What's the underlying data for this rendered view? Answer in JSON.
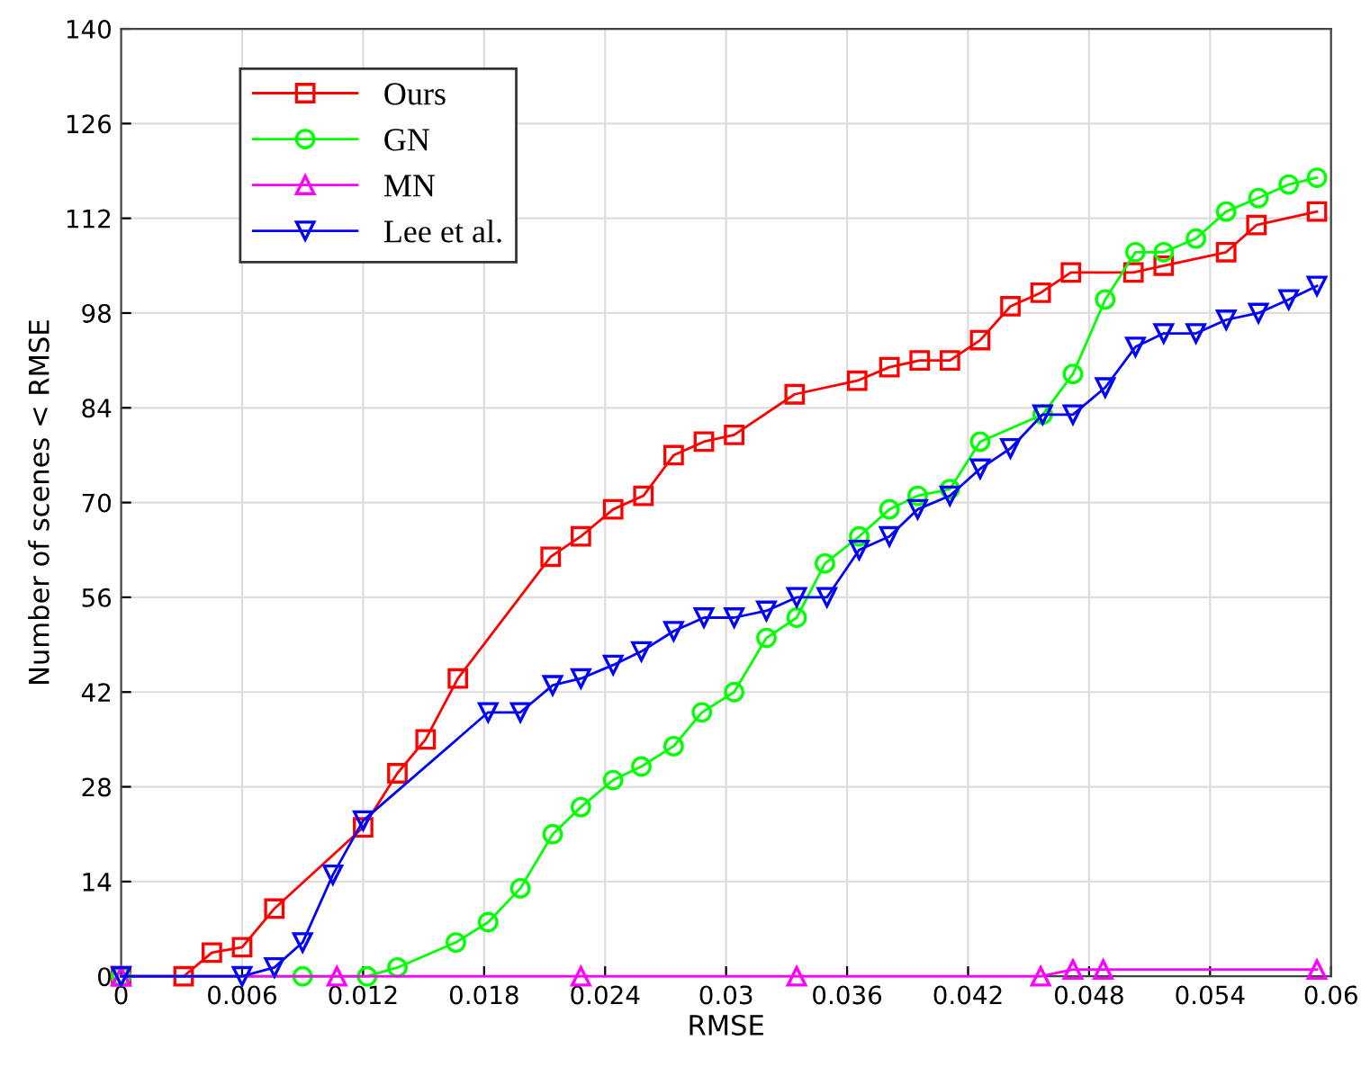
{
  "chart_data": {
    "type": "line",
    "xlabel": "RMSE",
    "ylabel": "Number of scenes < RMSE",
    "xlim": [
      0,
      0.06
    ],
    "ylim": [
      0,
      140
    ],
    "xticks": [
      {
        "value": 0,
        "label": "0"
      },
      {
        "value": 0.006,
        "label": "0.006"
      },
      {
        "value": 0.012,
        "label": "0.012"
      },
      {
        "value": 0.018,
        "label": "0.018"
      },
      {
        "value": 0.024,
        "label": "0.024"
      },
      {
        "value": 0.03,
        "label": "0.03"
      },
      {
        "value": 0.036,
        "label": "0.036"
      },
      {
        "value": 0.042,
        "label": "0.042"
      },
      {
        "value": 0.048,
        "label": "0.048"
      },
      {
        "value": 0.054,
        "label": "0.054"
      },
      {
        "value": 0.06,
        "label": "0.06"
      }
    ],
    "yticks": [
      0,
      14,
      28,
      42,
      56,
      70,
      84,
      98,
      112,
      126,
      140
    ],
    "grid": true,
    "legend": "top left",
    "series": [
      {
        "name": "Ours",
        "color": "#ff0000",
        "marker": "square",
        "x": [
          0,
          0.0031,
          0.0045,
          0.006,
          0.0076,
          0.012,
          0.0137,
          0.0151,
          0.0167,
          0.0213,
          0.0228,
          0.0244,
          0.0259,
          0.0274,
          0.0289,
          0.0304,
          0.0334,
          0.0365,
          0.0381,
          0.0396,
          0.0411,
          0.0426,
          0.0441,
          0.0456,
          0.0471,
          0.0502,
          0.0517,
          0.0548,
          0.0563,
          0.0593
        ],
        "values": [
          0,
          0,
          3.5,
          4.3,
          10,
          22,
          30,
          35,
          44,
          62,
          65,
          69,
          71,
          77,
          79,
          80,
          86,
          88,
          90,
          91,
          91,
          94,
          99,
          101,
          104,
          104,
          105,
          107,
          111,
          113
        ]
      },
      {
        "name": "GN",
        "color": "#00ff00",
        "marker": "circle",
        "x": [
          0,
          0.009,
          0.0122,
          0.0137,
          0.0166,
          0.0182,
          0.0198,
          0.0214,
          0.0228,
          0.0244,
          0.0258,
          0.0274,
          0.0288,
          0.0304,
          0.032,
          0.0335,
          0.0349,
          0.0366,
          0.0381,
          0.0395,
          0.0411,
          0.0426,
          0.0457,
          0.0472,
          0.0488,
          0.0503,
          0.0517,
          0.0533,
          0.0548,
          0.0564,
          0.0579,
          0.0593
        ],
        "values": [
          0,
          0,
          0,
          1.3,
          5,
          8,
          13,
          21,
          25,
          29,
          31,
          34,
          39,
          42,
          50,
          53,
          61,
          65,
          69,
          71,
          72,
          79,
          83,
          89,
          100,
          107,
          107,
          109,
          113,
          115,
          117,
          118
        ]
      },
      {
        "name": "MN",
        "color": "#ff00ff",
        "marker": "triangle",
        "x": [
          0,
          0.0107,
          0.0228,
          0.0335,
          0.0456,
          0.0472,
          0.0487,
          0.0593
        ],
        "values": [
          0,
          0,
          0,
          0,
          0,
          1,
          1,
          1
        ]
      },
      {
        "name": "Lee et al.",
        "color": "#0000ff",
        "marker": "triangle_down",
        "x": [
          0,
          0.006,
          0.0076,
          0.009,
          0.0105,
          0.012,
          0.0182,
          0.0198,
          0.0214,
          0.0228,
          0.0244,
          0.0258,
          0.0274,
          0.0289,
          0.0304,
          0.032,
          0.0335,
          0.035,
          0.0366,
          0.0381,
          0.0395,
          0.0411,
          0.0426,
          0.0441,
          0.0457,
          0.0472,
          0.0488,
          0.0503,
          0.0517,
          0.0533,
          0.0548,
          0.0564,
          0.0579,
          0.0593
        ],
        "values": [
          0,
          0,
          1.3,
          5,
          15,
          23,
          39,
          39,
          43,
          44,
          46,
          48,
          51,
          53,
          53,
          54,
          56,
          56,
          63,
          65,
          69,
          71,
          75,
          78,
          83,
          83,
          87,
          93,
          95,
          95,
          97,
          98,
          100,
          102
        ]
      }
    ]
  }
}
